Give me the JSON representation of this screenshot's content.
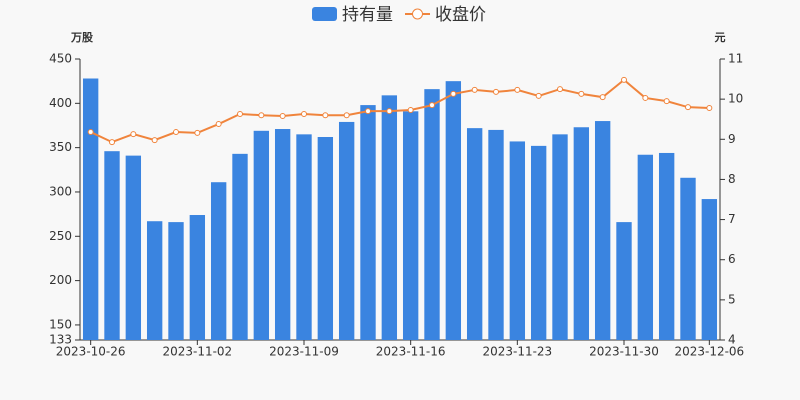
{
  "chart_data": {
    "type": "bar_line",
    "categories": [
      "2023-10-26",
      null,
      null,
      null,
      null,
      "2023-11-02",
      null,
      null,
      null,
      null,
      "2023-11-09",
      null,
      null,
      null,
      null,
      "2023-11-16",
      null,
      null,
      null,
      null,
      "2023-11-23",
      null,
      null,
      null,
      null,
      "2023-11-30",
      null,
      null,
      null,
      "2023-12-06"
    ],
    "series": [
      {
        "name": "持有量",
        "color": "#3a84e0",
        "axis": "y",
        "values": [
          428,
          346,
          341,
          267,
          266,
          274,
          311,
          343,
          369,
          371,
          365,
          362,
          379,
          398,
          409,
          391,
          416,
          425,
          372,
          370,
          357,
          352,
          365,
          373,
          380,
          266,
          342,
          344,
          316,
          292
        ]
      },
      {
        "name": "收盘价",
        "color": "#f0843c",
        "axis": "y2",
        "values": [
          9.18,
          8.93,
          9.13,
          8.98,
          9.18,
          9.16,
          9.38,
          9.63,
          9.6,
          9.58,
          9.63,
          9.6,
          9.6,
          9.7,
          9.7,
          9.73,
          9.85,
          10.13,
          10.23,
          10.18,
          10.23,
          10.08,
          10.25,
          10.13,
          10.05,
          10.48,
          10.03,
          9.95,
          9.8,
          9.78
        ]
      }
    ],
    "y_label": "万股",
    "y2_label": "元",
    "ylim": [
      133,
      450
    ],
    "yticks": [
      133,
      150,
      200,
      250,
      300,
      350,
      400,
      450
    ],
    "y2lim": [
      4,
      11
    ],
    "y2ticks": [
      4,
      5,
      6,
      7,
      8,
      9,
      10,
      11
    ]
  }
}
